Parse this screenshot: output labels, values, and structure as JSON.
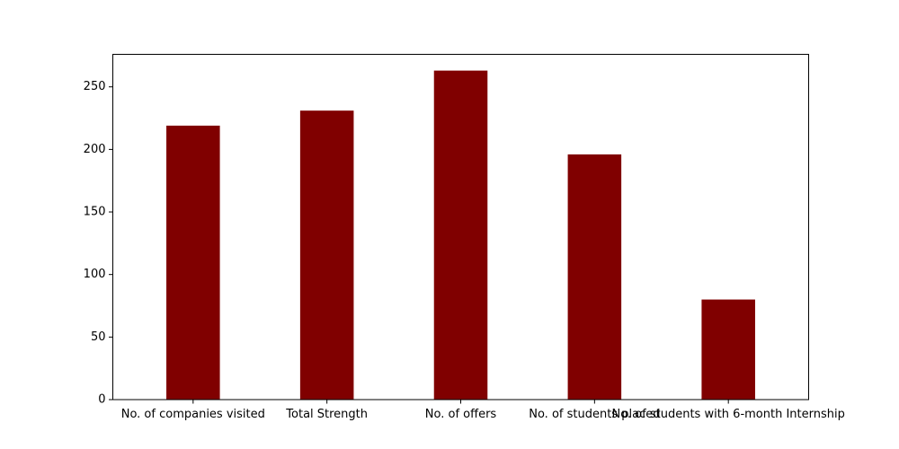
{
  "chart_data": {
    "type": "bar",
    "title": "",
    "xlabel": "",
    "ylabel": "",
    "categories": [
      "No. of companies visited",
      "Total Strength",
      "No. of offers",
      "No. of students placed",
      "No. of students with 6-month Internship"
    ],
    "values": [
      219,
      231,
      263,
      196,
      80
    ],
    "ylim": [
      0,
      276
    ],
    "yticks": [
      0,
      50,
      100,
      150,
      200,
      250
    ],
    "ytick_labels": [
      "0",
      "50",
      "100",
      "150",
      "200",
      "250"
    ],
    "bar_color": "#800000",
    "grid": false,
    "legend": "none"
  }
}
